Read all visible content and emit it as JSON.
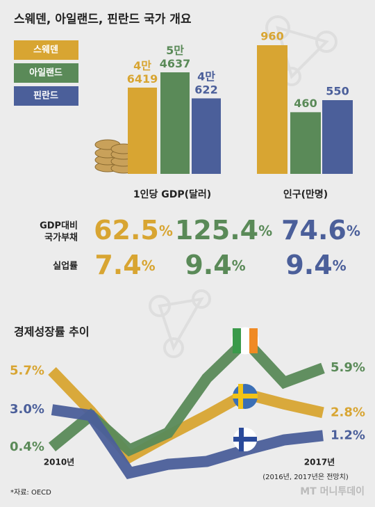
{
  "title": "스웨덴, 아일랜드, 핀란드 국가 개요",
  "legend": [
    {
      "name": "스웨덴",
      "color": "#d8a532"
    },
    {
      "name": "아일랜드",
      "color": "#5a8a58"
    },
    {
      "name": "핀란드",
      "color": "#4b5f9a"
    }
  ],
  "chart_data": [
    {
      "type": "bar",
      "label": "1인당 GDP(달러)",
      "values": [
        46419,
        54637,
        40622
      ],
      "value_labels": [
        "4만 6419",
        "5만 4637",
        "4만 622"
      ]
    },
    {
      "type": "bar",
      "label": "인구(만명)",
      "values": [
        960,
        460,
        550
      ]
    },
    {
      "type": "stat",
      "label": "GDP대비 국가부채",
      "values": [
        62.5,
        125.4,
        74.6
      ],
      "value_labels": [
        "62.5%",
        "125.4%",
        "74.6%"
      ]
    },
    {
      "type": "stat",
      "label": "실업률",
      "values": [
        7.4,
        9.4,
        9.4
      ],
      "value_labels": [
        "7.4%",
        "9.4%",
        "9.4%"
      ]
    },
    {
      "type": "line",
      "title": "경제성장률 추이",
      "note": "(2016년, 2017년은 전망치)",
      "categories": [
        "2010년",
        null,
        null,
        null,
        null,
        null,
        null,
        "2017년"
      ],
      "series": [
        {
          "values": [
            5.7,
            2.9,
            -0.3,
            1.2,
            2.6,
            4.1,
            3.4,
            2.8
          ],
          "value_labels": [
            "5.7%",
            null,
            null,
            null,
            null,
            null,
            null,
            "2.8%"
          ]
        },
        {
          "values": [
            0.4,
            2.6,
            0.2,
            1.4,
            5.2,
            7.8,
            4.9,
            5.9
          ],
          "value_labels": [
            "0.4%",
            null,
            null,
            null,
            null,
            null,
            null,
            "5.9%"
          ]
        },
        {
          "values": [
            3.0,
            2.6,
            -1.4,
            -0.8,
            -0.6,
            0.2,
            0.9,
            1.2
          ],
          "value_labels": [
            "3.0%",
            null,
            null,
            null,
            null,
            null,
            null,
            "1.2%"
          ]
        }
      ]
    }
  ],
  "source": "*자료: OECD",
  "watermark": "MT 머니투데이"
}
